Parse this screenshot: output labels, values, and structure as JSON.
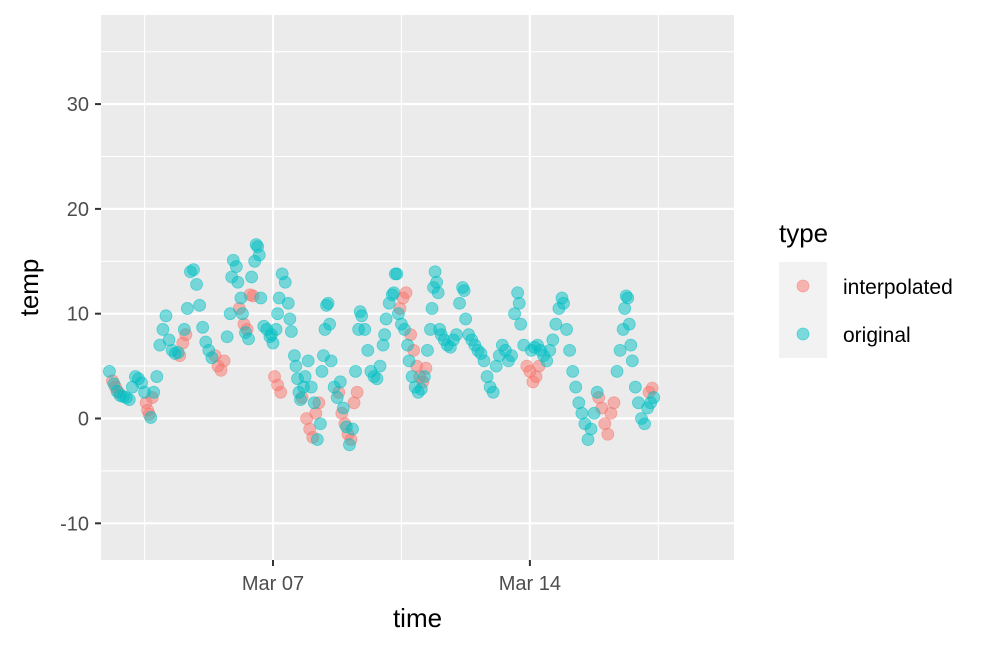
{
  "chart_data": {
    "type": "scatter",
    "title": "",
    "xlabel": "time",
    "ylabel": "temp",
    "x_is_date": true,
    "xlim": [
      "2024-03-02T07:30",
      "2024-03-19T13:30"
    ],
    "ylim": [
      -13.5,
      38.5
    ],
    "x_ticks": [
      {
        "value": "2024-03-07T00:00",
        "label": "Mar 07"
      },
      {
        "value": "2024-03-14T00:00",
        "label": "Mar 14"
      }
    ],
    "x_minor_ticks": [
      "2024-03-03T12:00",
      "2024-03-10T12:00",
      "2024-03-17T12:00"
    ],
    "y_ticks": [
      {
        "value": -10,
        "label": "-10"
      },
      {
        "value": 0,
        "label": "0"
      },
      {
        "value": 10,
        "label": "10"
      },
      {
        "value": 20,
        "label": "20"
      },
      {
        "value": 30,
        "label": "30"
      }
    ],
    "y_minor_ticks": [
      -5,
      5,
      15,
      25,
      35
    ],
    "grid": true,
    "legend": {
      "title": "type",
      "position": "right"
    },
    "series": [
      {
        "name": "interpolated",
        "color": "#F8766D",
        "points": [
          [
            "2024-03-02T15:00",
            3.6
          ],
          [
            "2024-03-02T17:00",
            3.0
          ],
          [
            "2024-03-02T19:00",
            2.5
          ],
          [
            "2024-03-03T13:00",
            1.5
          ],
          [
            "2024-03-03T14:00",
            0.8
          ],
          [
            "2024-03-03T15:00",
            0.4
          ],
          [
            "2024-03-03T17:00",
            2.0
          ],
          [
            "2024-03-04T11:00",
            6.0
          ],
          [
            "2024-03-04T13:00",
            7.2
          ],
          [
            "2024-03-04T15:00",
            8.0
          ],
          [
            "2024-03-05T10:00",
            6.0
          ],
          [
            "2024-03-05T12:00",
            5.0
          ],
          [
            "2024-03-05T14:00",
            4.6
          ],
          [
            "2024-03-05T16:00",
            5.5
          ],
          [
            "2024-03-06T02:00",
            10.5
          ],
          [
            "2024-03-06T05:00",
            9.0
          ],
          [
            "2024-03-06T07:00",
            8.5
          ],
          [
            "2024-03-06T09:00",
            11.8
          ],
          [
            "2024-03-06T11:00",
            11.7
          ],
          [
            "2024-03-07T01:00",
            4.0
          ],
          [
            "2024-03-07T03:00",
            3.2
          ],
          [
            "2024-03-07T05:00",
            2.5
          ],
          [
            "2024-03-07T19:00",
            2.0
          ],
          [
            "2024-03-07T22:00",
            0.0
          ],
          [
            "2024-03-08T00:00",
            -1.0
          ],
          [
            "2024-03-08T02:00",
            -1.8
          ],
          [
            "2024-03-08T04:00",
            0.5
          ],
          [
            "2024-03-08T06:00",
            1.5
          ],
          [
            "2024-03-08T19:00",
            2.5
          ],
          [
            "2024-03-08T21:00",
            0.5
          ],
          [
            "2024-03-08T23:00",
            -0.5
          ],
          [
            "2024-03-09T01:00",
            -1.5
          ],
          [
            "2024-03-09T03:00",
            -2.0
          ],
          [
            "2024-03-09T05:00",
            1.5
          ],
          [
            "2024-03-09T07:00",
            2.5
          ],
          [
            "2024-03-10T11:00",
            10.5
          ],
          [
            "2024-03-10T13:00",
            11.5
          ],
          [
            "2024-03-10T15:00",
            12.0
          ],
          [
            "2024-03-10T18:00",
            8.0
          ],
          [
            "2024-03-10T20:00",
            6.5
          ],
          [
            "2024-03-10T22:00",
            5.0
          ],
          [
            "2024-03-11T00:00",
            4.0
          ],
          [
            "2024-03-11T02:00",
            3.5
          ],
          [
            "2024-03-11T04:00",
            4.8
          ],
          [
            "2024-03-13T22:00",
            5.0
          ],
          [
            "2024-03-14T00:00",
            4.5
          ],
          [
            "2024-03-14T02:00",
            3.5
          ],
          [
            "2024-03-14T04:00",
            4.0
          ],
          [
            "2024-03-14T06:00",
            5.0
          ],
          [
            "2024-03-15T21:00",
            2.0
          ],
          [
            "2024-03-15T23:00",
            1.0
          ],
          [
            "2024-03-16T01:00",
            -0.5
          ],
          [
            "2024-03-16T03:00",
            -1.5
          ],
          [
            "2024-03-16T05:00",
            0.5
          ],
          [
            "2024-03-16T07:00",
            1.5
          ],
          [
            "2024-03-17T06:00",
            2.5
          ],
          [
            "2024-03-17T08:00",
            2.9
          ]
        ]
      },
      {
        "name": "original",
        "color": "#00BFC4",
        "points": [
          [
            "2024-03-02T13:00",
            4.5
          ],
          [
            "2024-03-02T16:00",
            3.3
          ],
          [
            "2024-03-02T18:00",
            2.6
          ],
          [
            "2024-03-02T20:00",
            2.2
          ],
          [
            "2024-03-02T22:00",
            2.1
          ],
          [
            "2024-03-03T00:00",
            2.0
          ],
          [
            "2024-03-03T02:00",
            1.8
          ],
          [
            "2024-03-03T04:00",
            3.0
          ],
          [
            "2024-03-03T06:00",
            4.0
          ],
          [
            "2024-03-03T08:00",
            3.8
          ],
          [
            "2024-03-03T10:00",
            3.4
          ],
          [
            "2024-03-03T12:00",
            2.5
          ],
          [
            "2024-03-03T16:00",
            0.1
          ],
          [
            "2024-03-03T18:00",
            2.5
          ],
          [
            "2024-03-03T20:00",
            4.0
          ],
          [
            "2024-03-03T22:00",
            7.0
          ],
          [
            "2024-03-04T00:00",
            8.5
          ],
          [
            "2024-03-04T02:00",
            9.8
          ],
          [
            "2024-03-04T04:00",
            7.5
          ],
          [
            "2024-03-04T06:00",
            6.5
          ],
          [
            "2024-03-04T08:00",
            6.2
          ],
          [
            "2024-03-04T10:00",
            6.3
          ],
          [
            "2024-03-04T14:00",
            8.5
          ],
          [
            "2024-03-04T16:00",
            10.5
          ],
          [
            "2024-03-04T18:00",
            14.0
          ],
          [
            "2024-03-04T20:00",
            14.2
          ],
          [
            "2024-03-04T22:00",
            12.8
          ],
          [
            "2024-03-05T00:00",
            10.8
          ],
          [
            "2024-03-05T02:00",
            8.7
          ],
          [
            "2024-03-05T04:00",
            7.3
          ],
          [
            "2024-03-05T06:00",
            6.5
          ],
          [
            "2024-03-05T08:00",
            5.8
          ],
          [
            "2024-03-05T18:00",
            7.8
          ],
          [
            "2024-03-05T20:00",
            10.0
          ],
          [
            "2024-03-05T21:00",
            13.5
          ],
          [
            "2024-03-05T22:00",
            15.1
          ],
          [
            "2024-03-06T00:00",
            14.5
          ],
          [
            "2024-03-06T01:00",
            13.0
          ],
          [
            "2024-03-06T03:00",
            11.5
          ],
          [
            "2024-03-06T04:00",
            10.0
          ],
          [
            "2024-03-06T06:00",
            8.2
          ],
          [
            "2024-03-06T08:00",
            7.6
          ],
          [
            "2024-03-06T10:00",
            13.5
          ],
          [
            "2024-03-06T12:00",
            15.0
          ],
          [
            "2024-03-06T13:00",
            16.6
          ],
          [
            "2024-03-06T14:00",
            16.4
          ],
          [
            "2024-03-06T15:00",
            15.6
          ],
          [
            "2024-03-06T16:00",
            11.5
          ],
          [
            "2024-03-06T18:00",
            8.8
          ],
          [
            "2024-03-06T20:00",
            8.5
          ],
          [
            "2024-03-06T22:00",
            7.8
          ],
          [
            "2024-03-07T00:00",
            7.2
          ],
          [
            "2024-03-06T23:00",
            8.0
          ],
          [
            "2024-03-07T02:00",
            8.5
          ],
          [
            "2024-03-07T03:00",
            10.0
          ],
          [
            "2024-03-07T04:00",
            11.5
          ],
          [
            "2024-03-07T06:00",
            13.8
          ],
          [
            "2024-03-07T08:00",
            13.0
          ],
          [
            "2024-03-07T10:00",
            11.0
          ],
          [
            "2024-03-07T11:00",
            9.5
          ],
          [
            "2024-03-07T12:00",
            8.3
          ],
          [
            "2024-03-07T14:00",
            6.0
          ],
          [
            "2024-03-07T15:00",
            5.0
          ],
          [
            "2024-03-07T16:00",
            3.8
          ],
          [
            "2024-03-07T17:00",
            2.5
          ],
          [
            "2024-03-07T18:00",
            1.8
          ],
          [
            "2024-03-07T20:00",
            3.0
          ],
          [
            "2024-03-07T21:00",
            4.0
          ],
          [
            "2024-03-07T23:00",
            5.5
          ],
          [
            "2024-03-08T01:00",
            3.0
          ],
          [
            "2024-03-08T03:00",
            1.5
          ],
          [
            "2024-03-08T05:00",
            -2.0
          ],
          [
            "2024-03-08T07:00",
            -0.5
          ],
          [
            "2024-03-08T08:00",
            4.5
          ],
          [
            "2024-03-08T09:00",
            6.0
          ],
          [
            "2024-03-08T10:00",
            8.5
          ],
          [
            "2024-03-08T11:00",
            10.8
          ],
          [
            "2024-03-08T12:00",
            11.0
          ],
          [
            "2024-03-08T13:00",
            9.0
          ],
          [
            "2024-03-08T14:00",
            5.5
          ],
          [
            "2024-03-08T16:00",
            3.0
          ],
          [
            "2024-03-08T18:00",
            2.0
          ],
          [
            "2024-03-08T20:00",
            3.5
          ],
          [
            "2024-03-08T22:00",
            1.0
          ],
          [
            "2024-03-09T00:00",
            -0.8
          ],
          [
            "2024-03-09T02:00",
            -2.5
          ],
          [
            "2024-03-09T04:00",
            -1.0
          ],
          [
            "2024-03-09T06:00",
            4.5
          ],
          [
            "2024-03-09T08:00",
            8.5
          ],
          [
            "2024-03-09T09:00",
            10.2
          ],
          [
            "2024-03-09T10:00",
            9.8
          ],
          [
            "2024-03-09T12:00",
            8.5
          ],
          [
            "2024-03-09T14:00",
            6.5
          ],
          [
            "2024-03-09T16:00",
            4.5
          ],
          [
            "2024-03-09T18:00",
            4.0
          ],
          [
            "2024-03-09T20:00",
            3.8
          ],
          [
            "2024-03-09T22:00",
            5.0
          ],
          [
            "2024-03-10T00:00",
            7.0
          ],
          [
            "2024-03-10T01:00",
            8.0
          ],
          [
            "2024-03-10T02:00",
            9.5
          ],
          [
            "2024-03-10T04:00",
            11.0
          ],
          [
            "2024-03-10T06:00",
            11.8
          ],
          [
            "2024-03-10T07:00",
            12.0
          ],
          [
            "2024-03-10T08:00",
            13.8
          ],
          [
            "2024-03-10T09:00",
            13.8
          ],
          [
            "2024-03-10T10:00",
            10.0
          ],
          [
            "2024-03-10T12:00",
            9.0
          ],
          [
            "2024-03-10T14:00",
            8.5
          ],
          [
            "2024-03-10T16:00",
            7.0
          ],
          [
            "2024-03-10T17:00",
            5.5
          ],
          [
            "2024-03-10T19:00",
            4.0
          ],
          [
            "2024-03-10T21:00",
            3.0
          ],
          [
            "2024-03-10T23:00",
            2.5
          ],
          [
            "2024-03-11T01:00",
            2.8
          ],
          [
            "2024-03-11T03:00",
            4.0
          ],
          [
            "2024-03-11T05:00",
            6.5
          ],
          [
            "2024-03-11T07:00",
            8.5
          ],
          [
            "2024-03-11T08:00",
            10.5
          ],
          [
            "2024-03-11T09:00",
            12.5
          ],
          [
            "2024-03-11T10:00",
            14.0
          ],
          [
            "2024-03-11T11:00",
            13.0
          ],
          [
            "2024-03-11T12:00",
            12.0
          ],
          [
            "2024-03-11T13:00",
            8.5
          ],
          [
            "2024-03-11T14:00",
            8.0
          ],
          [
            "2024-03-11T16:00",
            7.5
          ],
          [
            "2024-03-11T18:00",
            7.0
          ],
          [
            "2024-03-11T20:00",
            6.8
          ],
          [
            "2024-03-11T22:00",
            7.5
          ],
          [
            "2024-03-12T00:00",
            8.0
          ],
          [
            "2024-03-12T02:00",
            11.0
          ],
          [
            "2024-03-12T04:00",
            12.5
          ],
          [
            "2024-03-12T05:00",
            12.2
          ],
          [
            "2024-03-12T06:00",
            9.5
          ],
          [
            "2024-03-12T08:00",
            8.0
          ],
          [
            "2024-03-12T10:00",
            7.5
          ],
          [
            "2024-03-12T12:00",
            7.0
          ],
          [
            "2024-03-12T14:00",
            6.5
          ],
          [
            "2024-03-12T16:00",
            6.2
          ],
          [
            "2024-03-12T18:00",
            5.5
          ],
          [
            "2024-03-12T20:00",
            4.0
          ],
          [
            "2024-03-12T22:00",
            3.0
          ],
          [
            "2024-03-13T00:00",
            2.5
          ],
          [
            "2024-03-13T02:00",
            5.0
          ],
          [
            "2024-03-13T04:00",
            6.0
          ],
          [
            "2024-03-13T06:00",
            7.0
          ],
          [
            "2024-03-13T08:00",
            6.5
          ],
          [
            "2024-03-13T10:00",
            5.5
          ],
          [
            "2024-03-13T12:00",
            6.0
          ],
          [
            "2024-03-13T14:00",
            10.0
          ],
          [
            "2024-03-13T16:00",
            12.0
          ],
          [
            "2024-03-13T17:00",
            11.0
          ],
          [
            "2024-03-13T18:00",
            9.0
          ],
          [
            "2024-03-13T20:00",
            7.0
          ],
          [
            "2024-03-14T01:00",
            6.5
          ],
          [
            "2024-03-14T03:00",
            6.8
          ],
          [
            "2024-03-14T05:00",
            7.0
          ],
          [
            "2024-03-14T07:00",
            6.5
          ],
          [
            "2024-03-14T09:00",
            6.0
          ],
          [
            "2024-03-14T11:00",
            5.5
          ],
          [
            "2024-03-14T13:00",
            6.5
          ],
          [
            "2024-03-14T15:00",
            7.5
          ],
          [
            "2024-03-14T17:00",
            9.0
          ],
          [
            "2024-03-14T19:00",
            10.5
          ],
          [
            "2024-03-14T21:00",
            11.5
          ],
          [
            "2024-03-14T22:00",
            11.0
          ],
          [
            "2024-03-15T00:00",
            8.5
          ],
          [
            "2024-03-15T02:00",
            6.5
          ],
          [
            "2024-03-15T04:00",
            4.5
          ],
          [
            "2024-03-15T06:00",
            3.0
          ],
          [
            "2024-03-15T08:00",
            1.5
          ],
          [
            "2024-03-15T10:00",
            0.5
          ],
          [
            "2024-03-15T12:00",
            -0.5
          ],
          [
            "2024-03-15T14:00",
            -2.0
          ],
          [
            "2024-03-15T16:00",
            -1.0
          ],
          [
            "2024-03-15T18:00",
            0.5
          ],
          [
            "2024-03-15T20:00",
            2.5
          ],
          [
            "2024-03-16T09:00",
            4.5
          ],
          [
            "2024-03-16T11:00",
            6.5
          ],
          [
            "2024-03-16T13:00",
            8.5
          ],
          [
            "2024-03-16T14:00",
            10.5
          ],
          [
            "2024-03-16T15:00",
            11.7
          ],
          [
            "2024-03-16T16:00",
            11.5
          ],
          [
            "2024-03-16T17:00",
            9.0
          ],
          [
            "2024-03-16T18:00",
            7.0
          ],
          [
            "2024-03-16T19:00",
            5.5
          ],
          [
            "2024-03-16T21:00",
            3.0
          ],
          [
            "2024-03-16T23:00",
            1.5
          ],
          [
            "2024-03-17T01:00",
            0.0
          ],
          [
            "2024-03-17T03:00",
            -0.5
          ],
          [
            "2024-03-17T05:00",
            1.0
          ],
          [
            "2024-03-17T07:00",
            1.5
          ],
          [
            "2024-03-17T09:00",
            2.0
          ]
        ]
      }
    ]
  }
}
